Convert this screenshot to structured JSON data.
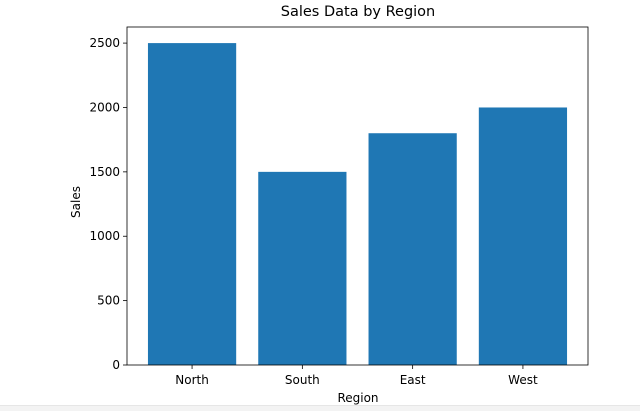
{
  "chart_data": {
    "type": "bar",
    "title": "Sales Data by Region",
    "xlabel": "Region",
    "ylabel": "Sales",
    "categories": [
      "North",
      "South",
      "East",
      "West"
    ],
    "values": [
      2500,
      1500,
      1800,
      2000
    ],
    "ylim": [
      0,
      2625
    ],
    "yticks": [
      0,
      500,
      1000,
      1500,
      2000,
      2500
    ],
    "bar_color": "#1f77b4",
    "grid": false,
    "legend": "none"
  }
}
